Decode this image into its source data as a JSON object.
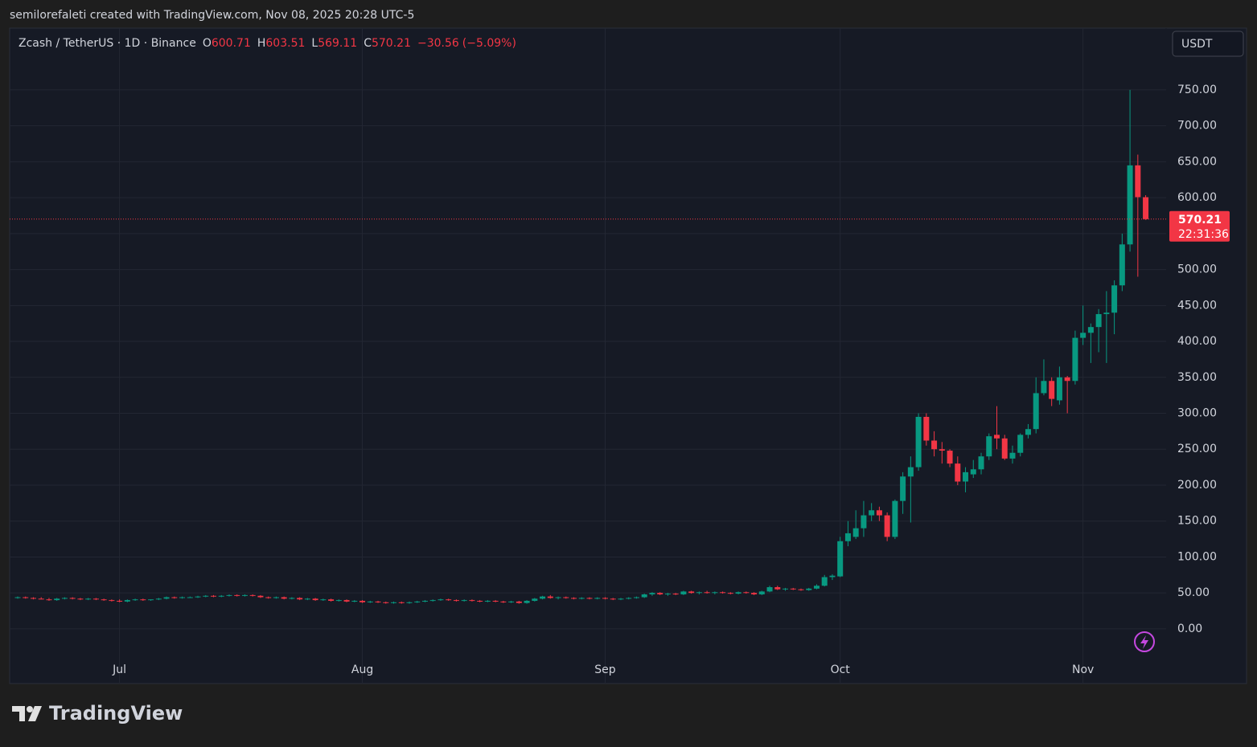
{
  "header": {
    "attribution": "semilorefaleti created with TradingView.com, Nov 08, 2025 20:28 UTC-5",
    "brand": "TradingView"
  },
  "chart_data": {
    "type": "candlestick",
    "title": "Zcash / TetherUS · 1D · Binance",
    "ohlc_labels": [
      "O",
      "H",
      "L",
      "C"
    ],
    "change": "−30.56",
    "change_pct": "(−5.09%)",
    "currency": "USDT",
    "countdown": "22:31:36",
    "up_color": "#089981",
    "down_color": "#f23645",
    "grid": true,
    "ylim": [
      -75,
      836
    ],
    "yticks": [
      {
        "value": 0,
        "label": "0.00"
      },
      {
        "value": 50,
        "label": "50.00"
      },
      {
        "value": 100,
        "label": "100.00"
      },
      {
        "value": 150,
        "label": "150.00"
      },
      {
        "value": 200,
        "label": "200.00"
      },
      {
        "value": 250,
        "label": "250.00"
      },
      {
        "value": 300,
        "label": "300.00"
      },
      {
        "value": 350,
        "label": "350.00"
      },
      {
        "value": 400,
        "label": "400.00"
      },
      {
        "value": 450,
        "label": "450.00"
      },
      {
        "value": 500,
        "label": "500.00"
      },
      {
        "value": 550,
        "label": "550.00"
      },
      {
        "value": 600,
        "label": "600.00"
      },
      {
        "value": 650,
        "label": "650.00"
      },
      {
        "value": 700,
        "label": "700.00"
      },
      {
        "value": 750,
        "label": "750.00"
      }
    ],
    "categories": [
      null,
      null,
      null,
      null,
      null,
      null,
      null,
      null,
      null,
      null,
      null,
      null,
      null,
      "Jul",
      null,
      null,
      null,
      null,
      null,
      null,
      null,
      null,
      null,
      null,
      null,
      null,
      null,
      null,
      null,
      null,
      null,
      null,
      null,
      null,
      null,
      null,
      null,
      null,
      null,
      null,
      null,
      null,
      null,
      null,
      "Aug",
      null,
      null,
      null,
      null,
      null,
      null,
      null,
      null,
      null,
      null,
      null,
      null,
      null,
      null,
      null,
      null,
      null,
      null,
      null,
      null,
      null,
      null,
      null,
      null,
      null,
      null,
      null,
      null,
      null,
      null,
      "Sep",
      null,
      null,
      null,
      null,
      null,
      null,
      null,
      null,
      null,
      null,
      null,
      null,
      null,
      null,
      null,
      null,
      null,
      null,
      null,
      null,
      null,
      null,
      null,
      null,
      null,
      null,
      null,
      null,
      null,
      "Oct",
      null,
      null,
      null,
      null,
      null,
      null,
      null,
      null,
      null,
      null,
      null,
      null,
      null,
      null,
      null,
      null,
      null,
      null,
      null,
      null,
      null,
      null,
      null,
      null,
      null,
      null,
      null,
      null,
      null,
      null,
      "Nov",
      null,
      null,
      null,
      null,
      null,
      null,
      null,
      null
    ],
    "ohlc": [
      [
        43,
        45,
        42,
        44
      ],
      [
        44,
        45,
        42,
        43
      ],
      [
        43,
        44,
        41,
        42
      ],
      [
        42,
        44,
        41,
        41
      ],
      [
        41,
        43,
        39,
        40
      ],
      [
        40,
        43,
        39,
        42
      ],
      [
        42,
        44,
        41,
        43
      ],
      [
        43,
        44,
        41,
        42
      ],
      [
        42,
        43,
        40,
        41
      ],
      [
        41,
        43,
        40,
        42
      ],
      [
        42,
        43,
        40,
        41
      ],
      [
        41,
        42,
        39,
        40
      ],
      [
        40,
        41,
        38,
        39
      ],
      [
        39,
        41,
        37,
        38
      ],
      [
        38,
        41,
        37,
        40
      ],
      [
        40,
        42,
        39,
        41
      ],
      [
        41,
        42,
        39,
        40
      ],
      [
        40,
        41,
        39,
        41
      ],
      [
        41,
        43,
        40,
        42
      ],
      [
        42,
        45,
        41,
        44
      ],
      [
        44,
        45,
        42,
        43
      ],
      [
        43,
        45,
        42,
        44
      ],
      [
        44,
        45,
        43,
        44
      ],
      [
        44,
        46,
        43,
        45
      ],
      [
        45,
        47,
        44,
        46
      ],
      [
        46,
        47,
        44,
        45
      ],
      [
        45,
        47,
        44,
        46
      ],
      [
        46,
        48,
        45,
        47
      ],
      [
        47,
        48,
        45,
        46
      ],
      [
        46,
        48,
        45,
        47
      ],
      [
        47,
        48,
        45,
        46
      ],
      [
        46,
        47,
        43,
        44
      ],
      [
        44,
        45,
        42,
        43
      ],
      [
        43,
        45,
        42,
        44
      ],
      [
        44,
        45,
        41,
        42
      ],
      [
        42,
        44,
        41,
        43
      ],
      [
        43,
        44,
        40,
        41
      ],
      [
        41,
        43,
        40,
        42
      ],
      [
        42,
        43,
        39,
        40
      ],
      [
        40,
        42,
        39,
        41
      ],
      [
        41,
        42,
        38,
        39
      ],
      [
        39,
        41,
        38,
        40
      ],
      [
        40,
        41,
        37,
        38
      ],
      [
        38,
        40,
        37,
        39
      ],
      [
        39,
        40,
        36,
        37
      ],
      [
        37,
        39,
        36,
        38
      ],
      [
        38,
        39,
        36,
        37
      ],
      [
        37,
        38,
        35,
        36
      ],
      [
        36,
        38,
        35,
        37
      ],
      [
        37,
        38,
        35,
        36
      ],
      [
        36,
        38,
        35,
        37
      ],
      [
        37,
        39,
        36,
        38
      ],
      [
        38,
        40,
        37,
        39
      ],
      [
        39,
        41,
        38,
        40
      ],
      [
        40,
        42,
        39,
        41
      ],
      [
        41,
        42,
        39,
        40
      ],
      [
        40,
        41,
        38,
        39
      ],
      [
        39,
        41,
        38,
        40
      ],
      [
        40,
        41,
        38,
        39
      ],
      [
        39,
        40,
        37,
        38
      ],
      [
        38,
        40,
        37,
        39
      ],
      [
        39,
        40,
        37,
        38
      ],
      [
        38,
        39,
        36,
        37
      ],
      [
        37,
        39,
        36,
        38
      ],
      [
        38,
        39,
        35,
        36
      ],
      [
        36,
        40,
        35,
        39
      ],
      [
        39,
        43,
        38,
        42
      ],
      [
        42,
        46,
        41,
        45
      ],
      [
        45,
        47,
        42,
        43
      ],
      [
        43,
        45,
        41,
        44
      ],
      [
        44,
        45,
        42,
        43
      ],
      [
        43,
        44,
        41,
        42
      ],
      [
        42,
        44,
        41,
        43
      ],
      [
        43,
        44,
        41,
        42
      ],
      [
        42,
        44,
        41,
        43
      ],
      [
        43,
        44,
        41,
        42
      ],
      [
        42,
        43,
        40,
        41
      ],
      [
        41,
        43,
        40,
        42
      ],
      [
        42,
        44,
        41,
        43
      ],
      [
        43,
        45,
        42,
        44
      ],
      [
        44,
        49,
        43,
        48
      ],
      [
        48,
        51,
        46,
        50
      ],
      [
        50,
        51,
        47,
        48
      ],
      [
        48,
        50,
        46,
        49
      ],
      [
        49,
        50,
        47,
        48
      ],
      [
        48,
        53,
        47,
        52
      ],
      [
        52,
        53,
        49,
        50
      ],
      [
        50,
        52,
        48,
        51
      ],
      [
        51,
        53,
        49,
        50
      ],
      [
        50,
        52,
        48,
        51
      ],
      [
        51,
        52,
        49,
        50
      ],
      [
        50,
        51,
        48,
        49
      ],
      [
        49,
        52,
        48,
        51
      ],
      [
        51,
        52,
        49,
        50
      ],
      [
        50,
        51,
        47,
        48
      ],
      [
        48,
        53,
        47,
        52
      ],
      [
        52,
        60,
        51,
        58
      ],
      [
        58,
        60,
        54,
        55
      ],
      [
        55,
        57,
        53,
        56
      ],
      [
        56,
        57,
        54,
        55
      ],
      [
        55,
        56,
        53,
        54
      ],
      [
        54,
        57,
        53,
        56
      ],
      [
        56,
        62,
        55,
        60
      ],
      [
        60,
        75,
        59,
        72
      ],
      [
        72,
        76,
        68,
        74
      ],
      [
        73,
        128,
        72,
        122
      ],
      [
        122,
        150,
        115,
        133
      ],
      [
        128,
        165,
        125,
        140
      ],
      [
        140,
        178,
        128,
        158
      ],
      [
        158,
        175,
        150,
        165
      ],
      [
        165,
        170,
        150,
        158
      ],
      [
        158,
        162,
        122,
        128
      ],
      [
        128,
        180,
        125,
        178
      ],
      [
        178,
        218,
        160,
        212
      ],
      [
        212,
        240,
        148,
        225
      ],
      [
        225,
        300,
        220,
        295
      ],
      [
        295,
        300,
        255,
        262
      ],
      [
        262,
        275,
        240,
        250
      ],
      [
        250,
        260,
        230,
        248
      ],
      [
        248,
        250,
        225,
        230
      ],
      [
        230,
        240,
        200,
        205
      ],
      [
        205,
        225,
        190,
        218
      ],
      [
        215,
        235,
        210,
        222
      ],
      [
        222,
        245,
        215,
        240
      ],
      [
        240,
        272,
        235,
        268
      ],
      [
        270,
        310,
        250,
        265
      ],
      [
        265,
        270,
        235,
        237
      ],
      [
        237,
        255,
        230,
        245
      ],
      [
        245,
        272,
        240,
        270
      ],
      [
        270,
        285,
        265,
        278
      ],
      [
        278,
        350,
        272,
        328
      ],
      [
        328,
        375,
        325,
        345
      ],
      [
        345,
        350,
        310,
        320
      ],
      [
        318,
        365,
        312,
        350
      ],
      [
        350,
        352,
        300,
        345
      ],
      [
        345,
        415,
        340,
        405
      ],
      [
        405,
        450,
        395,
        412
      ],
      [
        412,
        425,
        370,
        420
      ],
      [
        420,
        445,
        385,
        438
      ],
      [
        438,
        470,
        370,
        440
      ],
      [
        440,
        485,
        410,
        478
      ],
      [
        478,
        550,
        470,
        535
      ],
      [
        535,
        750,
        525,
        645
      ],
      [
        645,
        660,
        490,
        600.77
      ],
      [
        600.71,
        603.51,
        569.11,
        570.21
      ]
    ]
  }
}
